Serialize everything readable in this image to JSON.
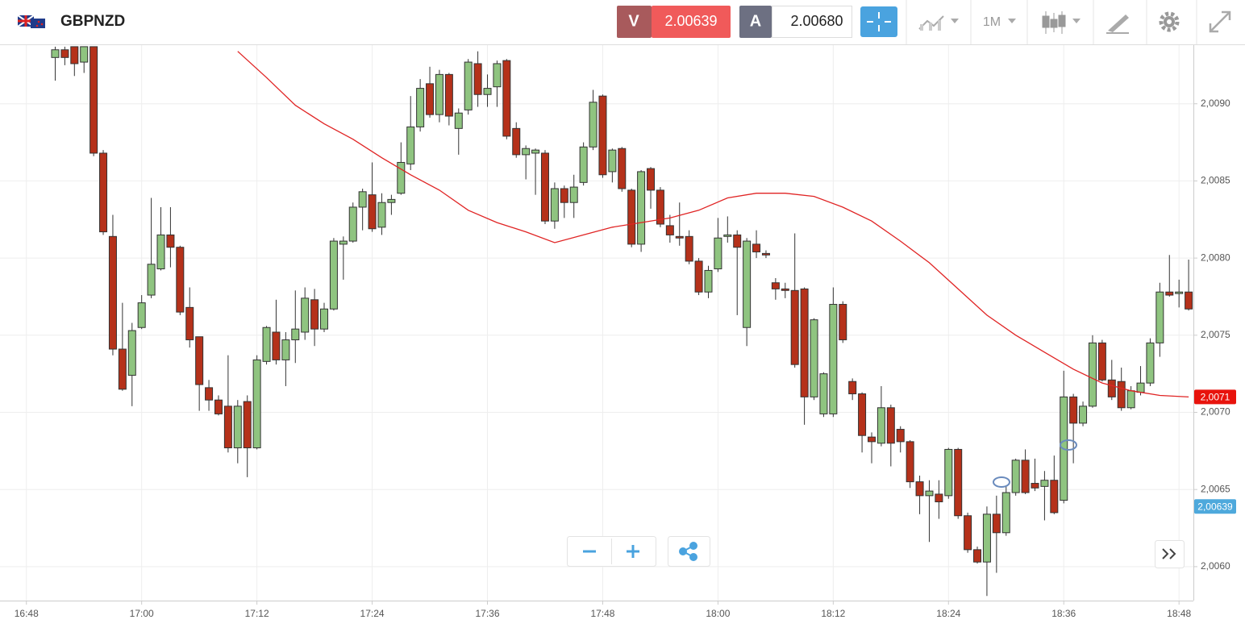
{
  "header": {
    "symbol": "GBPNZD",
    "sell_label": "V",
    "sell_price": "2.00639",
    "buy_label": "A",
    "buy_price": "2.00680",
    "timeframe": "1M"
  },
  "chart_data": {
    "type": "candlestick",
    "x": [
      "16:51",
      "16:52",
      "16:53",
      "16:54",
      "16:55",
      "16:56",
      "16:57",
      "16:58",
      "16:59",
      "17:00",
      "17:01",
      "17:02",
      "17:03",
      "17:04",
      "17:05",
      "17:06",
      "17:07",
      "17:08",
      "17:09",
      "17:10",
      "17:11",
      "17:12",
      "17:13",
      "17:14",
      "17:15",
      "17:16",
      "17:17",
      "17:18",
      "17:19",
      "17:20",
      "17:21",
      "17:22",
      "17:23",
      "17:24",
      "17:25",
      "17:26",
      "17:27",
      "17:28",
      "17:29",
      "17:30",
      "17:31",
      "17:32",
      "17:33",
      "17:34",
      "17:35",
      "17:36",
      "17:37",
      "17:38",
      "17:39",
      "17:40",
      "17:41",
      "17:42",
      "17:43",
      "17:44",
      "17:45",
      "17:46",
      "17:47",
      "17:48",
      "17:49",
      "17:50",
      "17:51",
      "17:52",
      "17:53",
      "17:54",
      "17:55",
      "17:56",
      "17:57",
      "17:58",
      "17:59",
      "18:00",
      "18:01",
      "18:02",
      "18:03",
      "18:04",
      "18:05",
      "18:06",
      "18:07",
      "18:08",
      "18:09",
      "18:10",
      "18:11",
      "18:12",
      "18:13",
      "18:14",
      "18:15",
      "18:16",
      "18:17",
      "18:18",
      "18:19",
      "18:20",
      "18:21",
      "18:22",
      "18:23",
      "18:24",
      "18:25",
      "18:26",
      "18:27",
      "18:28",
      "18:29",
      "18:30",
      "18:31",
      "18:32",
      "18:33",
      "18:34",
      "18:35",
      "18:36",
      "18:37",
      "18:38",
      "18:39",
      "18:40",
      "18:41",
      "18:42",
      "18:43",
      "18:44",
      "18:45",
      "18:46",
      "18:47",
      "18:48",
      "18:49"
    ],
    "open": [
      2.0093,
      2.00935,
      2.00937,
      2.00927,
      2.00937,
      2.00868,
      2.00814,
      2.00741,
      2.00724,
      2.00755,
      2.00776,
      2.00793,
      2.00815,
      2.00807,
      2.00768,
      2.00749,
      2.00716,
      2.00708,
      2.00704,
      2.00677,
      2.00707,
      2.00677,
      2.00733,
      2.00752,
      2.00734,
      2.00747,
      2.00752,
      2.00773,
      2.00754,
      2.00767,
      2.00809,
      2.00811,
      2.00833,
      2.00841,
      2.0082,
      2.00836,
      2.00842,
      2.00861,
      2.00885,
      2.00913,
      2.00893,
      2.00919,
      2.00884,
      2.00896,
      2.00926,
      2.00906,
      2.00911,
      2.00928,
      2.00884,
      2.00867,
      2.00868,
      2.00868,
      2.00824,
      2.00845,
      2.00836,
      2.00849,
      2.00872,
      2.00905,
      2.00856,
      2.00871,
      2.00844,
      2.00809,
      2.00858,
      2.00844,
      2.00821,
      2.00814,
      2.00814,
      2.00798,
      2.00778,
      2.00793,
      2.00814,
      2.00815,
      2.00755,
      2.00809,
      2.00803,
      2.00784,
      2.0078,
      2.00779,
      2.0078,
      2.0071,
      2.00699,
      2.00699,
      2.0077,
      2.0072,
      2.00712,
      2.00684,
      2.0068,
      2.00703,
      2.00689,
      2.00681,
      2.00655,
      2.00646,
      2.00647,
      2.00646,
      2.00676,
      2.00633,
      2.00611,
      2.00603,
      2.00634,
      2.00622,
      2.00648,
      2.00669,
      2.00654,
      2.00652,
      2.00656,
      2.00643,
      2.0071,
      2.00693,
      2.00704,
      2.00745,
      2.00721,
      2.0072,
      2.00703,
      2.00713,
      2.00719,
      2.00745,
      2.00778,
      2.00777,
      2.00778
    ],
    "high": [
      2.00937,
      2.00937,
      2.00937,
      2.00937,
      2.00937,
      2.0087,
      2.00828,
      2.00771,
      2.00758,
      2.00776,
      2.00839,
      2.00833,
      2.00833,
      2.00808,
      2.00781,
      2.00749,
      2.00721,
      2.00711,
      2.00737,
      2.00708,
      2.00711,
      2.00737,
      2.00756,
      2.00773,
      2.00752,
      2.00779,
      2.00781,
      2.0078,
      2.00771,
      2.00813,
      2.00814,
      2.00836,
      2.00845,
      2.00862,
      2.00842,
      2.00841,
      2.00875,
      2.00905,
      2.00916,
      2.00924,
      2.00922,
      2.0092,
      2.00897,
      2.00929,
      2.00934,
      2.00919,
      2.00928,
      2.00929,
      2.00888,
      2.00873,
      2.00871,
      2.0087,
      2.00849,
      2.00847,
      2.00854,
      2.00875,
      2.00909,
      2.00906,
      2.00871,
      2.00872,
      2.00845,
      2.00857,
      2.00859,
      2.00846,
      2.00828,
      2.00836,
      2.00818,
      2.008,
      2.00795,
      2.00826,
      2.00827,
      2.00818,
      2.00813,
      2.00818,
      2.00805,
      2.00787,
      2.00784,
      2.00816,
      2.00781,
      2.00761,
      2.00726,
      2.00781,
      2.00772,
      2.00722,
      2.00713,
      2.00687,
      2.00717,
      2.00705,
      2.00691,
      2.00682,
      2.00659,
      2.00656,
      2.00656,
      2.00677,
      2.00677,
      2.00635,
      2.00613,
      2.00639,
      2.00646,
      2.00652,
      2.0067,
      2.00676,
      2.0067,
      2.00662,
      2.00672,
      2.00727,
      2.00712,
      2.00707,
      2.0075,
      2.00747,
      2.00734,
      2.00729,
      2.00717,
      2.0073,
      2.00748,
      2.00784,
      2.00802,
      2.00786,
      2.00799
    ],
    "low": [
      2.00915,
      2.00925,
      2.00918,
      2.0092,
      2.00866,
      2.00815,
      2.00737,
      2.00714,
      2.00704,
      2.00754,
      2.00774,
      2.00792,
      2.00794,
      2.00763,
      2.00742,
      2.00701,
      2.00701,
      2.00698,
      2.00674,
      2.00667,
      2.00658,
      2.00676,
      2.00731,
      2.00731,
      2.00717,
      2.00732,
      2.00747,
      2.00743,
      2.00752,
      2.00766,
      2.00786,
      2.0081,
      2.00818,
      2.00817,
      2.00815,
      2.00828,
      2.00841,
      2.00857,
      2.00882,
      2.00891,
      2.00888,
      2.00886,
      2.00867,
      2.00893,
      2.00898,
      2.00898,
      2.00898,
      2.00877,
      2.00865,
      2.00851,
      2.00841,
      2.00822,
      2.00819,
      2.00826,
      2.00826,
      2.00847,
      2.0087,
      2.00852,
      2.00849,
      2.00843,
      2.00807,
      2.00804,
      2.00832,
      2.0082,
      2.0081,
      2.00808,
      2.00796,
      2.00776,
      2.00774,
      2.00791,
      2.0081,
      2.00763,
      2.00743,
      2.008,
      2.008,
      2.00773,
      2.00774,
      2.00729,
      2.00692,
      2.00708,
      2.00697,
      2.00697,
      2.00745,
      2.00708,
      2.00674,
      2.00667,
      2.00678,
      2.00665,
      2.00674,
      2.00651,
      2.00634,
      2.00616,
      2.00631,
      2.00644,
      2.00631,
      2.00609,
      2.00602,
      2.00581,
      2.00596,
      2.0062,
      2.00646,
      2.00647,
      2.00649,
      2.0063,
      2.00634,
      2.00641,
      2.00667,
      2.00691,
      2.00703,
      2.0072,
      2.00708,
      2.00701,
      2.00702,
      2.00711,
      2.00717,
      2.00736,
      2.00775,
      2.00768,
      2.00766
    ],
    "close": [
      2.00935,
      2.0093,
      2.00926,
      2.00937,
      2.00868,
      2.00817,
      2.00741,
      2.00715,
      2.00753,
      2.00771,
      2.00796,
      2.00815,
      2.00807,
      2.00765,
      2.00747,
      2.00718,
      2.00708,
      2.00699,
      2.00677,
      2.00704,
      2.00677,
      2.00734,
      2.00755,
      2.00734,
      2.00747,
      2.00754,
      2.00774,
      2.00754,
      2.00767,
      2.00811,
      2.00811,
      2.00833,
      2.00843,
      2.00819,
      2.00836,
      2.00838,
      2.00862,
      2.00885,
      2.0091,
      2.00893,
      2.00919,
      2.00892,
      2.00894,
      2.00927,
      2.00906,
      2.0091,
      2.00926,
      2.00879,
      2.00867,
      2.00871,
      2.0087,
      2.00824,
      2.00845,
      2.00836,
      2.00846,
      2.00872,
      2.00901,
      2.00854,
      2.0087,
      2.00845,
      2.00809,
      2.00856,
      2.00844,
      2.00822,
      2.00815,
      2.00813,
      2.00798,
      2.00778,
      2.00792,
      2.00813,
      2.00815,
      2.00807,
      2.00811,
      2.00804,
      2.00802,
      2.0078,
      2.00779,
      2.00731,
      2.0071,
      2.0076,
      2.00725,
      2.0077,
      2.00747,
      2.00712,
      2.00685,
      2.00681,
      2.00703,
      2.0068,
      2.00681,
      2.00655,
      2.00646,
      2.00649,
      2.00642,
      2.00676,
      2.00633,
      2.00611,
      2.00603,
      2.00634,
      2.00622,
      2.00648,
      2.00669,
      2.00648,
      2.00651,
      2.00656,
      2.00635,
      2.0071,
      2.00693,
      2.00704,
      2.00745,
      2.00721,
      2.0071,
      2.00703,
      2.00714,
      2.00719,
      2.00745,
      2.00778,
      2.00776,
      2.00778,
      2.00767
    ],
    "up_color": "#8fc480",
    "down_color": "#b5311a",
    "moving_average": {
      "color": "#e02424",
      "x": [
        "17:10",
        "17:13",
        "17:16",
        "17:19",
        "17:22",
        "17:25",
        "17:28",
        "17:31",
        "17:34",
        "17:37",
        "17:40",
        "17:43",
        "17:46",
        "17:49",
        "17:52",
        "17:55",
        "17:58",
        "18:01",
        "18:04",
        "18:07",
        "18:10",
        "18:13",
        "18:16",
        "18:19",
        "18:22",
        "18:25",
        "18:28",
        "18:31",
        "18:34",
        "18:37",
        "18:40",
        "18:43",
        "18:46",
        "18:49"
      ],
      "values": [
        2.00934,
        2.00917,
        2.00899,
        2.00887,
        2.00877,
        2.00865,
        2.00854,
        2.00844,
        2.00831,
        2.00823,
        2.00817,
        2.0081,
        2.00815,
        2.0082,
        2.00823,
        2.00826,
        2.00831,
        2.00839,
        2.00842,
        2.00842,
        2.0084,
        2.00833,
        2.00824,
        2.00811,
        2.00797,
        2.0078,
        2.00763,
        2.0075,
        2.00739,
        2.00728,
        2.00719,
        2.00714,
        2.00711,
        2.0071
      ]
    },
    "xlim": [
      "16:45",
      "18:50"
    ],
    "xticks": [
      "16:48",
      "17:00",
      "17:12",
      "17:24",
      "17:36",
      "17:48",
      "18:00",
      "18:12",
      "18:24",
      "18:36",
      "18:48"
    ],
    "ylim": [
      2.00578,
      2.00938
    ],
    "yticks": [
      {
        "value": 2.006,
        "label": "2,0060"
      },
      {
        "value": 2.0065,
        "label": "2,0065"
      },
      {
        "value": 2.007,
        "label": "2,0070"
      },
      {
        "value": 2.0075,
        "label": "2,0075"
      },
      {
        "value": 2.008,
        "label": "2,0080"
      },
      {
        "value": 2.0085,
        "label": "2,0085"
      },
      {
        "value": 2.009,
        "label": "2,0090"
      }
    ],
    "grid": true,
    "price_labels": [
      {
        "value": 2.0071,
        "label": "2,0071",
        "color": "#e8130c"
      },
      {
        "value": 2.00639,
        "label": "2,00639",
        "color": "#4ea9dc"
      }
    ]
  }
}
